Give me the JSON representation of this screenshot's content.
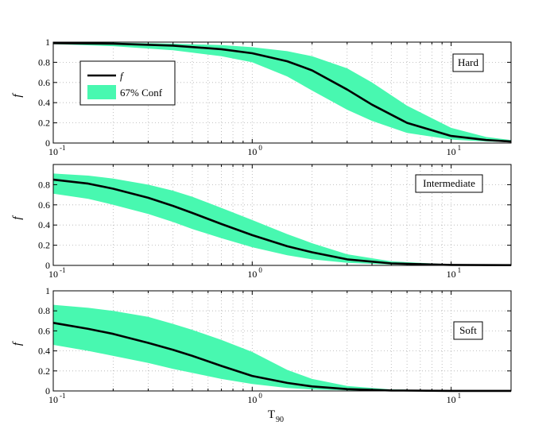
{
  "chart_data": [
    {
      "type": "area",
      "panel_label": "Hard",
      "ylabel": "f",
      "xlabel": "",
      "xscale": "log",
      "xlim": [
        0.1,
        20
      ],
      "ylim": [
        0,
        1
      ],
      "grid": true,
      "yticks": [
        "0",
        "0.2",
        "0.4",
        "0.6",
        "0.8",
        "1"
      ],
      "xticks": [
        {
          "base": "10",
          "exp": "-1"
        },
        {
          "base": "10",
          "exp": "0"
        },
        {
          "base": "10",
          "exp": "1"
        }
      ],
      "legend": {
        "placement": "upper-left",
        "entries": [
          {
            "label": "f",
            "kind": "line"
          },
          {
            "label": "67% Conf",
            "kind": "band"
          }
        ]
      },
      "series": [
        {
          "name": "f",
          "x": [
            0.1,
            0.2,
            0.4,
            0.7,
            1.0,
            1.5,
            2.0,
            3.0,
            4.0,
            6.0,
            10.0,
            15.0,
            20.0
          ],
          "y": [
            0.99,
            0.985,
            0.965,
            0.93,
            0.89,
            0.81,
            0.72,
            0.53,
            0.38,
            0.2,
            0.07,
            0.03,
            0.015
          ]
        },
        {
          "name": "67% Conf",
          "x": [
            0.1,
            0.2,
            0.4,
            0.7,
            1.0,
            1.5,
            2.0,
            3.0,
            4.0,
            6.0,
            10.0,
            15.0,
            20.0
          ],
          "y_lower": [
            0.98,
            0.96,
            0.92,
            0.86,
            0.8,
            0.66,
            0.52,
            0.33,
            0.22,
            0.1,
            0.035,
            0.015,
            0.008
          ],
          "y_upper": [
            1.0,
            0.995,
            0.985,
            0.97,
            0.95,
            0.91,
            0.86,
            0.74,
            0.6,
            0.37,
            0.15,
            0.06,
            0.03
          ]
        }
      ]
    },
    {
      "type": "area",
      "panel_label": "Intermediate",
      "ylabel": "f",
      "xlabel": "",
      "xscale": "log",
      "xlim": [
        0.1,
        20
      ],
      "ylim": [
        0,
        1
      ],
      "grid": true,
      "yticks": [
        "0",
        "0.2",
        "0.4",
        "0.6",
        "0.8"
      ],
      "xticks": [
        {
          "base": "10",
          "exp": "-1"
        },
        {
          "base": "10",
          "exp": "0"
        },
        {
          "base": "10",
          "exp": "1"
        }
      ],
      "series": [
        {
          "name": "f",
          "x": [
            0.1,
            0.15,
            0.2,
            0.3,
            0.4,
            0.5,
            0.7,
            1.0,
            1.5,
            2.0,
            3.0,
            5.0,
            10.0,
            20.0
          ],
          "y": [
            0.85,
            0.81,
            0.76,
            0.67,
            0.59,
            0.52,
            0.41,
            0.3,
            0.19,
            0.13,
            0.06,
            0.02,
            0.005,
            0.002
          ]
        },
        {
          "name": "67% Conf",
          "x": [
            0.1,
            0.15,
            0.2,
            0.3,
            0.4,
            0.5,
            0.7,
            1.0,
            1.5,
            2.0,
            3.0,
            5.0,
            10.0,
            20.0
          ],
          "y_lower": [
            0.71,
            0.66,
            0.6,
            0.51,
            0.43,
            0.36,
            0.27,
            0.18,
            0.1,
            0.06,
            0.025,
            0.008,
            0.002,
            0.001
          ],
          "y_upper": [
            0.91,
            0.89,
            0.86,
            0.8,
            0.74,
            0.68,
            0.57,
            0.45,
            0.31,
            0.22,
            0.11,
            0.04,
            0.01,
            0.003
          ]
        }
      ]
    },
    {
      "type": "area",
      "panel_label": "Soft",
      "ylabel": "f",
      "xlabel": "T",
      "xlabel_subscript": "90",
      "xscale": "log",
      "xlim": [
        0.1,
        20
      ],
      "ylim": [
        0,
        1
      ],
      "grid": true,
      "yticks": [
        "0",
        "0.2",
        "0.4",
        "0.6",
        "0.8",
        "1"
      ],
      "xticks": [
        {
          "base": "10",
          "exp": "-1"
        },
        {
          "base": "10",
          "exp": "0"
        },
        {
          "base": "10",
          "exp": "1"
        }
      ],
      "series": [
        {
          "name": "f",
          "x": [
            0.1,
            0.15,
            0.2,
            0.3,
            0.4,
            0.5,
            0.7,
            1.0,
            1.5,
            2.0,
            3.0,
            5.0,
            10.0,
            20.0
          ],
          "y": [
            0.68,
            0.62,
            0.57,
            0.48,
            0.41,
            0.35,
            0.25,
            0.15,
            0.08,
            0.045,
            0.018,
            0.005,
            0.001,
            0.0005
          ]
        },
        {
          "name": "67% Conf",
          "x": [
            0.1,
            0.15,
            0.2,
            0.3,
            0.4,
            0.5,
            0.7,
            1.0,
            1.5,
            2.0,
            3.0,
            5.0,
            10.0,
            20.0
          ],
          "y_lower": [
            0.46,
            0.4,
            0.35,
            0.28,
            0.22,
            0.18,
            0.12,
            0.07,
            0.03,
            0.015,
            0.006,
            0.002,
            0.0005,
            0.0002
          ],
          "y_upper": [
            0.86,
            0.83,
            0.8,
            0.74,
            0.67,
            0.61,
            0.51,
            0.39,
            0.21,
            0.12,
            0.05,
            0.015,
            0.004,
            0.001
          ]
        }
      ]
    }
  ],
  "colors": {
    "band": "#48f8b0",
    "line": "#000000",
    "grid": "#b0b0b0",
    "axes": "#000000",
    "background": "#ffffff"
  }
}
